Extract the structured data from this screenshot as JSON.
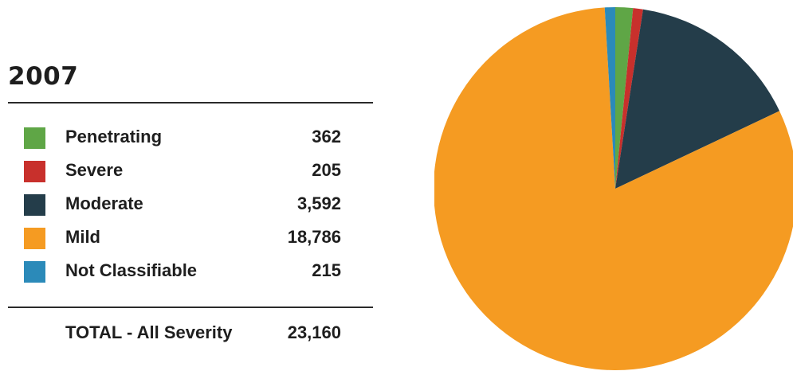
{
  "chart_data": {
    "type": "pie",
    "title": "2007",
    "slices": [
      {
        "label": "Penetrating",
        "value": 362,
        "value_label": "362",
        "color": "#5fa646"
      },
      {
        "label": "Severe",
        "value": 205,
        "value_label": "205",
        "color": "#c8302c"
      },
      {
        "label": "Moderate",
        "value": 3592,
        "value_label": "3,592",
        "color": "#243d4a"
      },
      {
        "label": "Mild",
        "value": 18786,
        "value_label": "18,786",
        "color": "#f59b22"
      },
      {
        "label": "Not Classifiable",
        "value": 215,
        "value_label": "215",
        "color": "#2b8ab9"
      }
    ],
    "total": {
      "label": "TOTAL - All Severity",
      "value": 23160,
      "value_label": "23,160"
    }
  }
}
